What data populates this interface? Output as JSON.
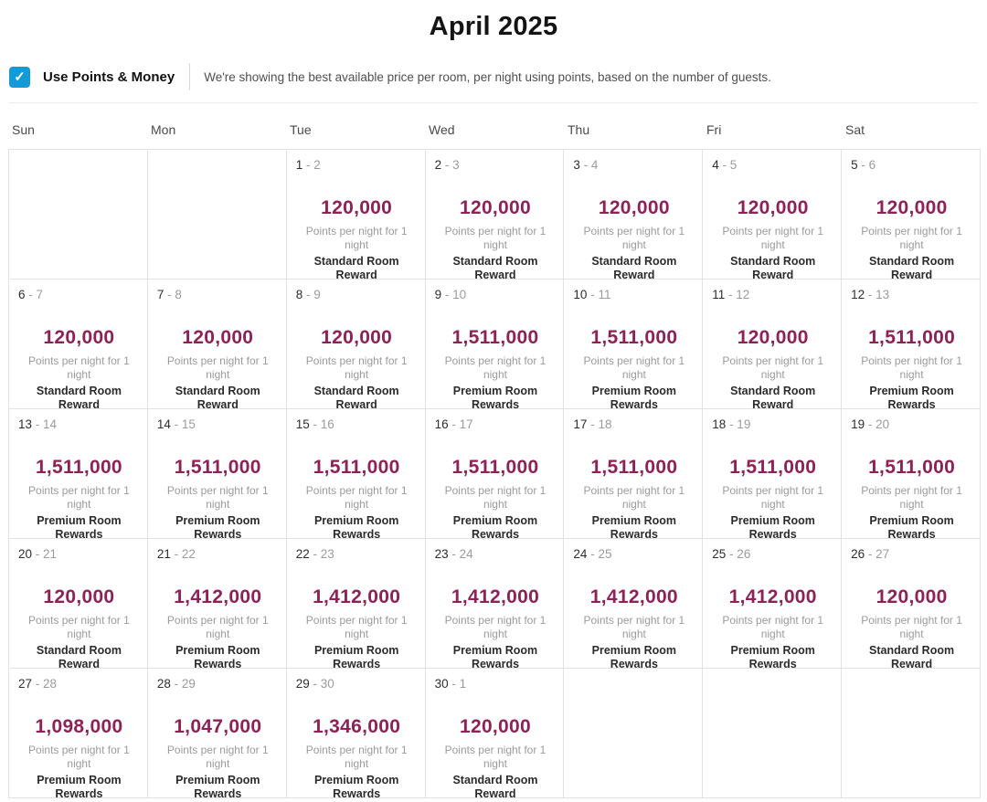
{
  "title": "April 2025",
  "filter": {
    "checkbox_label": "Use Points & Money",
    "checkbox_checked": true,
    "checkmark_glyph": "✓",
    "description": "We're showing the best available price per room, per night using points, based on the number of guests."
  },
  "colors": {
    "points_accent": "#8e2157",
    "checkbox_blue": "#129bd8"
  },
  "calendar": {
    "day_headers": [
      "Sun",
      "Mon",
      "Tue",
      "Wed",
      "Thu",
      "Fri",
      "Sat"
    ],
    "points_caption": "Points per night for 1 night",
    "room_types": [
      "Standard Room Reward",
      "Premium Room Rewards"
    ],
    "cells": [
      {
        "empty": true
      },
      {
        "empty": true
      },
      {
        "date_start": "1",
        "date_end": "2",
        "points": "120,000",
        "room": "Standard Room Reward"
      },
      {
        "date_start": "2",
        "date_end": "3",
        "points": "120,000",
        "room": "Standard Room Reward"
      },
      {
        "date_start": "3",
        "date_end": "4",
        "points": "120,000",
        "room": "Standard Room Reward"
      },
      {
        "date_start": "4",
        "date_end": "5",
        "points": "120,000",
        "room": "Standard Room Reward"
      },
      {
        "date_start": "5",
        "date_end": "6",
        "points": "120,000",
        "room": "Standard Room Reward"
      },
      {
        "date_start": "6",
        "date_end": "7",
        "points": "120,000",
        "room": "Standard Room Reward"
      },
      {
        "date_start": "7",
        "date_end": "8",
        "points": "120,000",
        "room": "Standard Room Reward"
      },
      {
        "date_start": "8",
        "date_end": "9",
        "points": "120,000",
        "room": "Standard Room Reward"
      },
      {
        "date_start": "9",
        "date_end": "10",
        "points": "1,511,000",
        "room": "Premium Room Rewards"
      },
      {
        "date_start": "10",
        "date_end": "11",
        "points": "1,511,000",
        "room": "Premium Room Rewards"
      },
      {
        "date_start": "11",
        "date_end": "12",
        "points": "120,000",
        "room": "Standard Room Reward"
      },
      {
        "date_start": "12",
        "date_end": "13",
        "points": "1,511,000",
        "room": "Premium Room Rewards"
      },
      {
        "date_start": "13",
        "date_end": "14",
        "points": "1,511,000",
        "room": "Premium Room Rewards"
      },
      {
        "date_start": "14",
        "date_end": "15",
        "points": "1,511,000",
        "room": "Premium Room Rewards"
      },
      {
        "date_start": "15",
        "date_end": "16",
        "points": "1,511,000",
        "room": "Premium Room Rewards"
      },
      {
        "date_start": "16",
        "date_end": "17",
        "points": "1,511,000",
        "room": "Premium Room Rewards"
      },
      {
        "date_start": "17",
        "date_end": "18",
        "points": "1,511,000",
        "room": "Premium Room Rewards"
      },
      {
        "date_start": "18",
        "date_end": "19",
        "points": "1,511,000",
        "room": "Premium Room Rewards"
      },
      {
        "date_start": "19",
        "date_end": "20",
        "points": "1,511,000",
        "room": "Premium Room Rewards"
      },
      {
        "date_start": "20",
        "date_end": "21",
        "points": "120,000",
        "room": "Standard Room Reward"
      },
      {
        "date_start": "21",
        "date_end": "22",
        "points": "1,412,000",
        "room": "Premium Room Rewards"
      },
      {
        "date_start": "22",
        "date_end": "23",
        "points": "1,412,000",
        "room": "Premium Room Rewards"
      },
      {
        "date_start": "23",
        "date_end": "24",
        "points": "1,412,000",
        "room": "Premium Room Rewards"
      },
      {
        "date_start": "24",
        "date_end": "25",
        "points": "1,412,000",
        "room": "Premium Room Rewards"
      },
      {
        "date_start": "25",
        "date_end": "26",
        "points": "1,412,000",
        "room": "Premium Room Rewards"
      },
      {
        "date_start": "26",
        "date_end": "27",
        "points": "120,000",
        "room": "Standard Room Reward"
      },
      {
        "date_start": "27",
        "date_end": "28",
        "points": "1,098,000",
        "room": "Premium Room Rewards"
      },
      {
        "date_start": "28",
        "date_end": "29",
        "points": "1,047,000",
        "room": "Premium Room Rewards"
      },
      {
        "date_start": "29",
        "date_end": "30",
        "points": "1,346,000",
        "room": "Premium Room Rewards"
      },
      {
        "date_start": "30",
        "date_end": "1",
        "points": "120,000",
        "room": "Standard Room Reward"
      },
      {
        "empty": true
      },
      {
        "empty": true
      },
      {
        "empty": true
      }
    ]
  }
}
